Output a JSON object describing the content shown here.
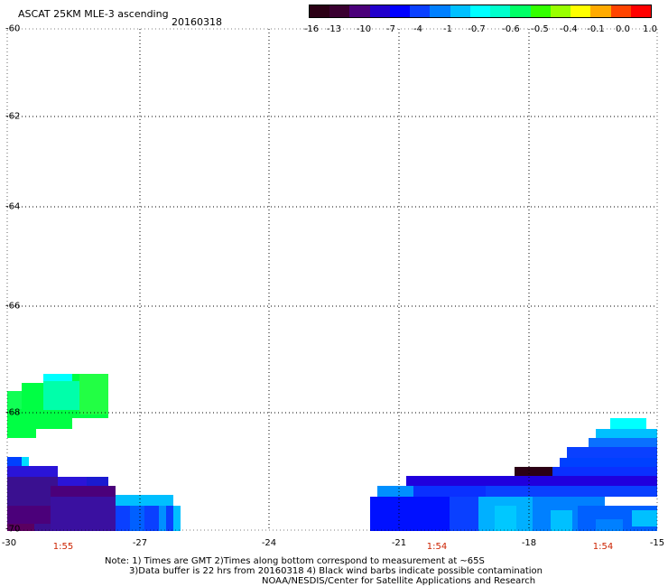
{
  "header": {
    "title": "ASCAT 25KM MLE-3 ascending",
    "date": "20160318"
  },
  "colorbar": {
    "colors": [
      "#2b0015",
      "#3a0030",
      "#4b007a",
      "#2200cc",
      "#0000ff",
      "#0a40ff",
      "#0080ff",
      "#00c0ff",
      "#00ffff",
      "#00ffcc",
      "#00ff66",
      "#33ff00",
      "#99ff00",
      "#ffff00",
      "#ffaa00",
      "#ff4400",
      "#ff0000"
    ],
    "tick_labels": [
      "-16",
      "-13",
      "-10",
      "-7",
      "-4",
      "-1",
      "-0.7",
      "-0.6",
      "-0.5",
      "-0.4",
      "-0.1",
      "0.0",
      "1.0"
    ]
  },
  "map": {
    "lat_labels": [
      "-60",
      "-62",
      "-64",
      "-66",
      "-68",
      "-70"
    ],
    "lon_labels": [
      "-30",
      "-27",
      "-24",
      "-21",
      "-18",
      "-15"
    ],
    "time_labels": [
      "1:55",
      "1:54",
      "1:54"
    ]
  },
  "footer": {
    "note_line1": "Note: 1) Times are GMT 2)Times along bottom correspond to measurement at ~65S",
    "note_line2": "3)Data buffer is 22 hrs from 20160318 4) Black wind barbs indicate possible contamination",
    "credit": "NOAA/NESDIS/Center for Satellite Applications and Research"
  }
}
